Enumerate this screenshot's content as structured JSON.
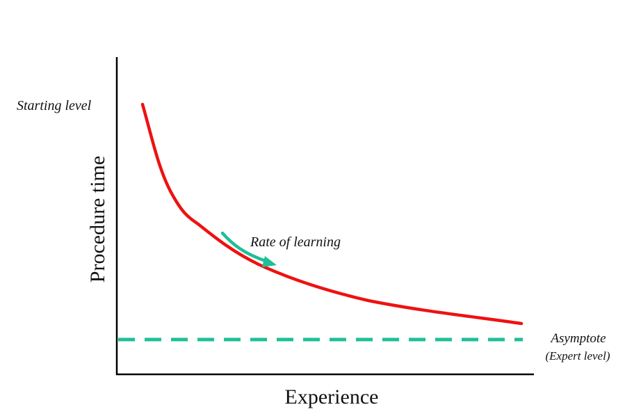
{
  "diagram": {
    "y_axis_label": "Procedure time",
    "x_axis_label": "Experience",
    "starting_level_label": "Starting level",
    "rate_label": "Rate of learning",
    "asymptote_label": "Asymptote",
    "asymptote_sublabel": "(Expert level)"
  },
  "colors": {
    "curve": "#ee1111",
    "asymptote": "#1fbf98",
    "arrow": "#1fbf98",
    "axes": "#000000"
  }
}
